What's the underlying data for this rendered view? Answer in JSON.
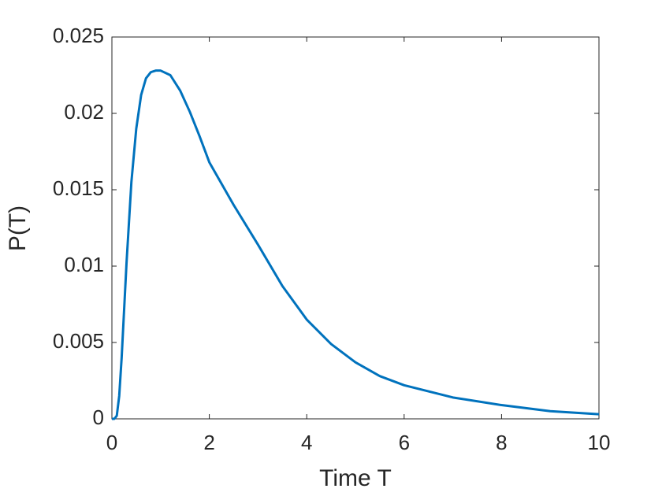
{
  "chart_data": {
    "type": "line",
    "x_label": "Time T",
    "y_label": "P(T)",
    "xlim": [
      0,
      10
    ],
    "xticks": [
      0,
      2,
      4,
      6,
      8,
      10
    ],
    "ylim": [
      0,
      0.025
    ],
    "yticks": [
      0,
      0.005,
      0.01,
      0.015,
      0.02,
      0.025
    ],
    "grid": false,
    "series": [
      {
        "color": "#0072bd",
        "x": [
          0,
          0.05,
          0.1,
          0.15,
          0.2,
          0.3,
          0.4,
          0.5,
          0.6,
          0.7,
          0.8,
          0.9,
          1.0,
          1.2,
          1.4,
          1.6,
          1.8,
          2.0,
          2.5,
          3.0,
          3.5,
          4.0,
          4.5,
          5.0,
          5.5,
          6.0,
          7.0,
          8.0,
          9.0,
          10.0
        ],
        "values": [
          0,
          0,
          0.0002,
          0.0015,
          0.004,
          0.0102,
          0.0155,
          0.019,
          0.0212,
          0.0223,
          0.0227,
          0.0228,
          0.0228,
          0.0225,
          0.0215,
          0.0201,
          0.0185,
          0.0168,
          0.014,
          0.0114,
          0.0087,
          0.0065,
          0.0049,
          0.0037,
          0.0028,
          0.0022,
          0.0014,
          0.0009,
          0.0005,
          0.0003
        ]
      }
    ]
  }
}
